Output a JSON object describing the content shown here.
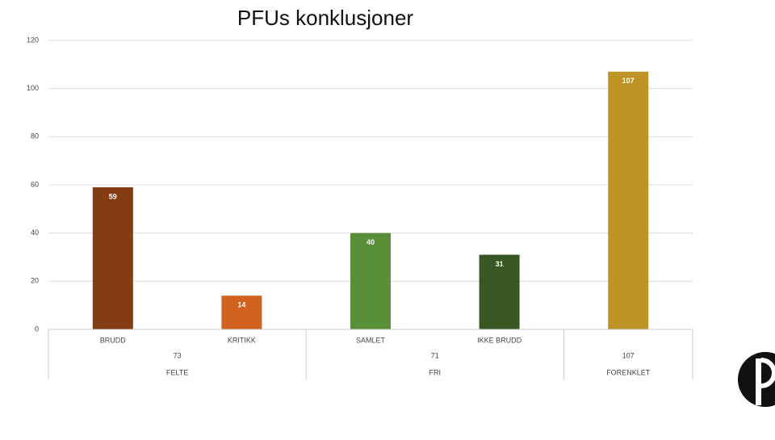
{
  "chart_data": {
    "type": "bar",
    "title": "PFUs konklusjoner",
    "categories": [
      "BRUDD",
      "KRITIKK",
      "SAMLET",
      "IKKE BRUDD",
      null
    ],
    "values": [
      59,
      14,
      40,
      31,
      107
    ],
    "colors": [
      "#843c13",
      "#d0611e",
      "#5a8f3a",
      "#385723",
      "#bf9426"
    ],
    "groups": [
      {
        "name": "FELTE",
        "total": 73,
        "size": 2
      },
      {
        "name": "FRI",
        "total": 71,
        "size": 2
      },
      {
        "name": "FORENKLET",
        "total": 107,
        "size": 1
      }
    ],
    "ylim": [
      0,
      120
    ],
    "yticks": [
      0,
      20,
      40,
      60,
      80,
      100,
      120
    ],
    "grid": true
  }
}
